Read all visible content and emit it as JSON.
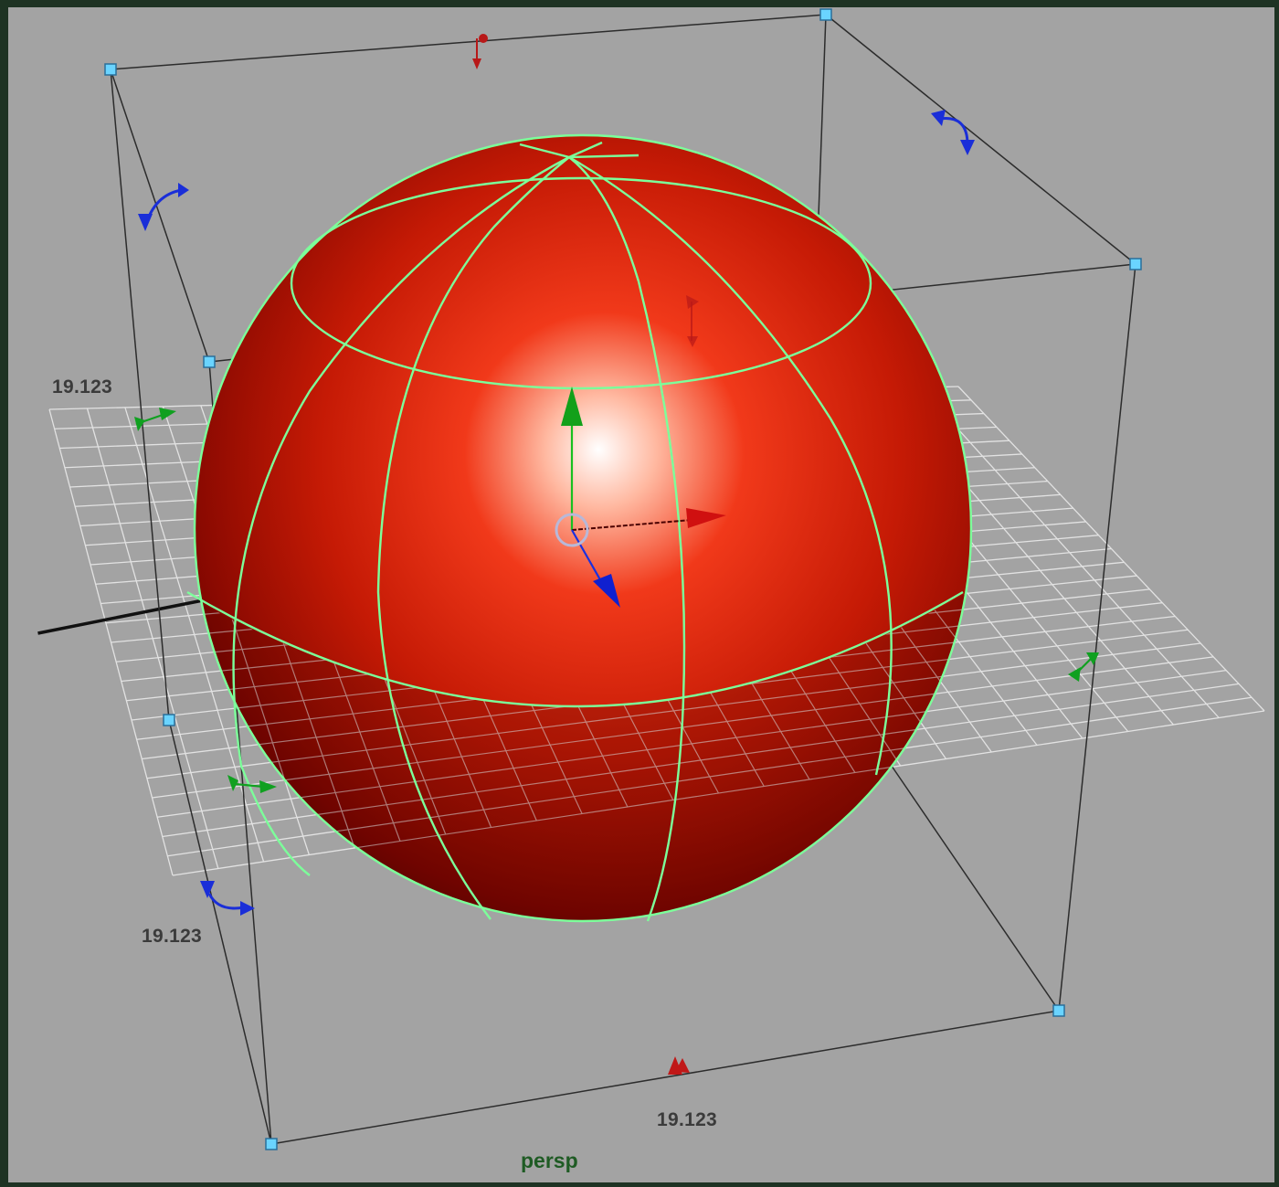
{
  "viewport": {
    "camera_name": "persp"
  },
  "scale_manipulator": {
    "dimensions": {
      "left": "19.123",
      "front_left": "19.123",
      "bottom": "19.123"
    }
  },
  "icons": {
    "move_manipulator": "move-manipulator-icon",
    "rotate_handle": "rotate-handle-icon",
    "scale_handle": "scale-handle-icon",
    "corner_handle": "corner-handle-icon"
  },
  "colors": {
    "viewport_background": "#a3a3a3",
    "selection_wireframe": "#7cff9a",
    "object_surface": "#c81a05",
    "bounding_box_handle": "#68d8ff",
    "axis_x": "#d01010",
    "axis_y": "#10c020",
    "axis_z": "#1020d0"
  }
}
